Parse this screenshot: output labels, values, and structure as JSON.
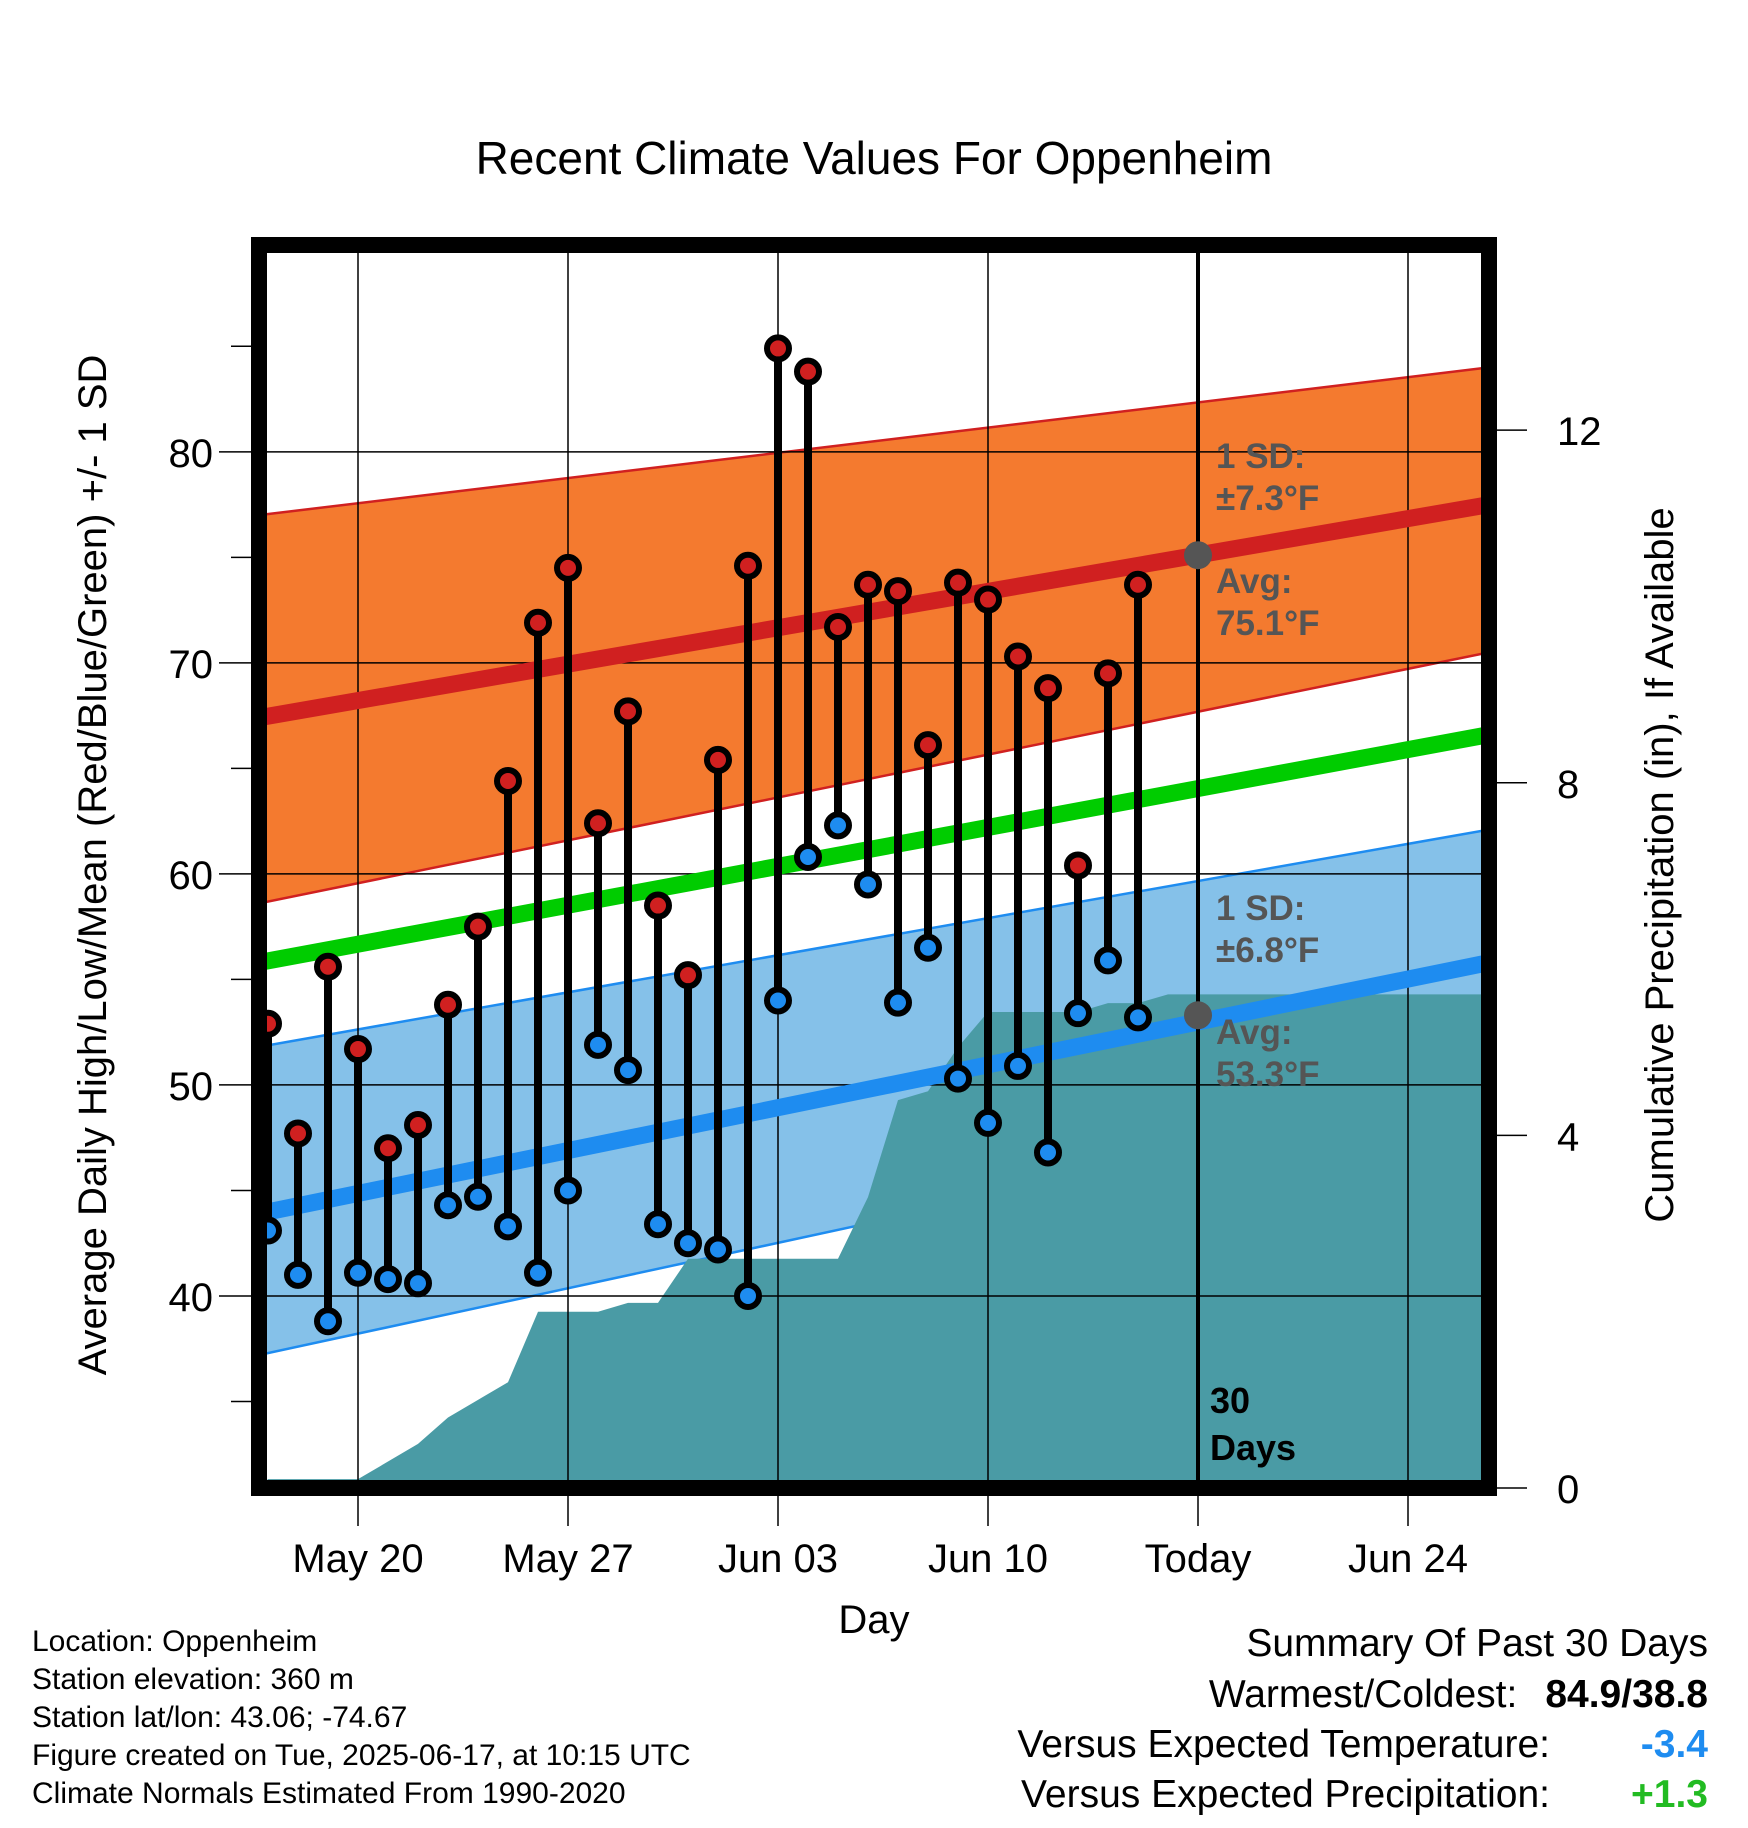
{
  "chart_data": {
    "type": "line",
    "title": "Recent Climate Values For Oppenheim",
    "xlabel": "Day",
    "ylabel": "Average Daily High/Low/Mean (Red/Blue/Green) +/- 1 SD",
    "y2label": "Cumulative Precipitation (in), If Available",
    "ylim": [
      30.9,
      89.8
    ],
    "y2lim": [
      0,
      14.1
    ],
    "yticks": [
      40,
      50,
      60,
      70,
      80
    ],
    "y2ticks": [
      0,
      4,
      8,
      12
    ],
    "x_ticks": [
      {
        "day": 20,
        "label": "May 20"
      },
      {
        "day": 27,
        "label": "May 27"
      },
      {
        "day": 34,
        "label": "Jun 03"
      },
      {
        "day": 41,
        "label": "Jun 10"
      },
      {
        "day": 48,
        "label": "Today"
      },
      {
        "day": 55,
        "label": "Jun 24"
      }
    ],
    "x_day_reference": "day number in May (day 32 = Jun 01)",
    "xlim": [
      16.7,
      57.7
    ],
    "grid": true,
    "colors": {
      "high_band": "#f47a2f",
      "high_mean": "#d02020",
      "low_band": "#85c1e9",
      "low_mean": "#1e8cf0",
      "mean_line": "#00cc00",
      "precip": "#4a9ba5",
      "high_dot": "#d02020",
      "low_dot": "#1e8cf0",
      "marker_today": "#555555",
      "annotation_text": "#555555"
    },
    "normals": {
      "start_day": 16.7,
      "end_day": 57.7,
      "high_avg": [
        67.4,
        77.5
      ],
      "high_upper": [
        77.0,
        84.0
      ],
      "high_lower": [
        58.6,
        70.5
      ],
      "low_avg": [
        43.9,
        55.8
      ],
      "low_upper": [
        51.8,
        62.1
      ],
      "low_lower": [
        37.2,
        49.8
      ],
      "mean": [
        55.8,
        66.6
      ]
    },
    "observations": {
      "days": [
        17,
        18,
        19,
        20,
        21,
        22,
        23,
        24,
        25,
        26,
        27,
        28,
        29,
        30,
        31,
        32,
        33,
        34,
        35,
        36,
        37,
        38,
        39,
        40,
        41,
        42,
        43,
        44,
        45,
        46,
        47
      ],
      "highs": [
        52.9,
        47.7,
        55.6,
        51.7,
        47.0,
        48.1,
        53.8,
        57.5,
        64.4,
        71.9,
        74.5,
        62.4,
        67.7,
        58.5,
        55.2,
        65.4,
        74.6,
        84.9,
        83.8,
        71.7,
        73.7,
        73.4,
        66.1,
        73.8,
        73.0,
        70.3,
        68.8,
        60.4,
        69.5,
        73.7,
        null
      ],
      "lows": [
        43.1,
        41.0,
        38.8,
        41.1,
        40.8,
        40.6,
        44.3,
        44.7,
        43.3,
        41.1,
        45.0,
        51.9,
        50.7,
        43.4,
        42.5,
        42.2,
        40.0,
        54.0,
        60.8,
        62.3,
        59.5,
        53.9,
        56.5,
        50.3,
        48.2,
        50.9,
        46.8,
        53.4,
        55.9,
        53.2,
        null
      ]
    },
    "precipitation": {
      "days": [
        16.7,
        17,
        18,
        19,
        20,
        21,
        22,
        23,
        24,
        25,
        26,
        27,
        28,
        29,
        30,
        31,
        32,
        33,
        34,
        35,
        36,
        37,
        38,
        39,
        40,
        41,
        42,
        43,
        44,
        45,
        46,
        47,
        48,
        57.7
      ],
      "cumulative": [
        0.0,
        0.1,
        0.1,
        0.1,
        0.1,
        0.3,
        0.5,
        0.8,
        1.0,
        1.2,
        2.0,
        2.0,
        2.0,
        2.1,
        2.1,
        2.6,
        2.6,
        2.6,
        2.6,
        2.6,
        2.6,
        3.3,
        4.4,
        4.5,
        5.0,
        5.4,
        5.4,
        5.4,
        5.4,
        5.5,
        5.5,
        5.6,
        5.6,
        5.6
      ]
    },
    "today_day": 48,
    "annotations": {
      "high_sd_label": "1 SD:",
      "high_sd_value": "±7.3°F",
      "high_avg_label": "Avg:",
      "high_avg_value": "75.1°F",
      "high_avg_number": 75.1,
      "low_sd_label": "1 SD:",
      "low_sd_value": "±6.8°F",
      "low_avg_label": "Avg:",
      "low_avg_value": "53.3°F",
      "low_avg_number": 53.3,
      "window_number": "30",
      "window_unit": "Days"
    }
  },
  "info": {
    "location": "Location: Oppenheim",
    "elevation": "Station elevation: 360 m",
    "latlon": "Station lat/lon: 43.06; -74.67",
    "created": "Figure created on Tue, 2025-06-17, at 10:15 UTC",
    "normals": "Climate Normals Estimated From 1990-2020"
  },
  "summary": {
    "title": "Summary Of Past 30 Days",
    "warmest_label": "Warmest/Coldest:",
    "warmest_value": "84.9/38.8",
    "temp_label": "Versus Expected Temperature:",
    "temp_value": "-3.4",
    "temp_color": "#1e8cf0",
    "precip_label": "Versus Expected Precipitation:",
    "precip_value": "+1.3",
    "precip_color": "#22bb22"
  }
}
